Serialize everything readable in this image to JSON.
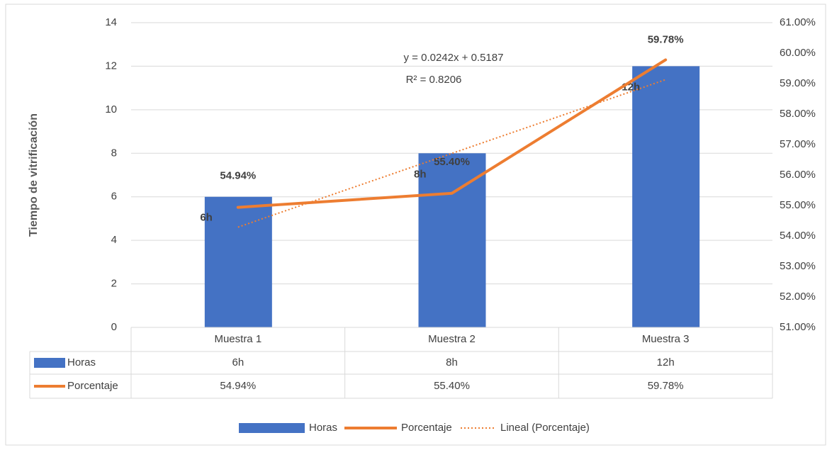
{
  "chart_data": {
    "type": "bar-line",
    "y_axis_label": "Tiempo de vitrificación",
    "categories": [
      "Muestra 1",
      "Muestra 2",
      "Muestra 3"
    ],
    "series": [
      {
        "name": "Horas",
        "type": "bar",
        "color": "#4472c4",
        "values": [
          6,
          8,
          12
        ],
        "value_labels": [
          "6h",
          "8h",
          "12h"
        ]
      },
      {
        "name": "Porcentaje",
        "type": "line",
        "axis": "y2",
        "color": "#ed7d31",
        "values": [
          54.94,
          55.4,
          59.78
        ],
        "value_labels": [
          "54.94%",
          "55.40%",
          "59.78%"
        ]
      },
      {
        "name": "Lineal (Porcentaje)",
        "type": "trendline",
        "axis": "y2",
        "color": "#ed7d31",
        "values": [
          54.29,
          56.71,
          59.13
        ]
      }
    ],
    "annotations": [
      "y = 0.0242x + 0.5187",
      "R² = 0.8206"
    ],
    "ylim": [
      0,
      14
    ],
    "yticks": [
      0,
      2,
      4,
      6,
      8,
      10,
      12,
      14
    ],
    "y2lim": [
      51,
      61
    ],
    "y2ticks": [
      {
        "value": 51,
        "label": "51.00%"
      },
      {
        "value": 52,
        "label": "52.00%"
      },
      {
        "value": 53,
        "label": "53.00%"
      },
      {
        "value": 54,
        "label": "54.00%"
      },
      {
        "value": 55,
        "label": "55.00%"
      },
      {
        "value": 56,
        "label": "56.00%"
      },
      {
        "value": 57,
        "label": "57.00%"
      },
      {
        "value": 58,
        "label": "58.00%"
      },
      {
        "value": 59,
        "label": "59.00%"
      },
      {
        "value": 60,
        "label": "60.00%"
      },
      {
        "value": 61,
        "label": "61.00%"
      }
    ],
    "grid": true,
    "data_table": true,
    "legend": "bottom"
  }
}
